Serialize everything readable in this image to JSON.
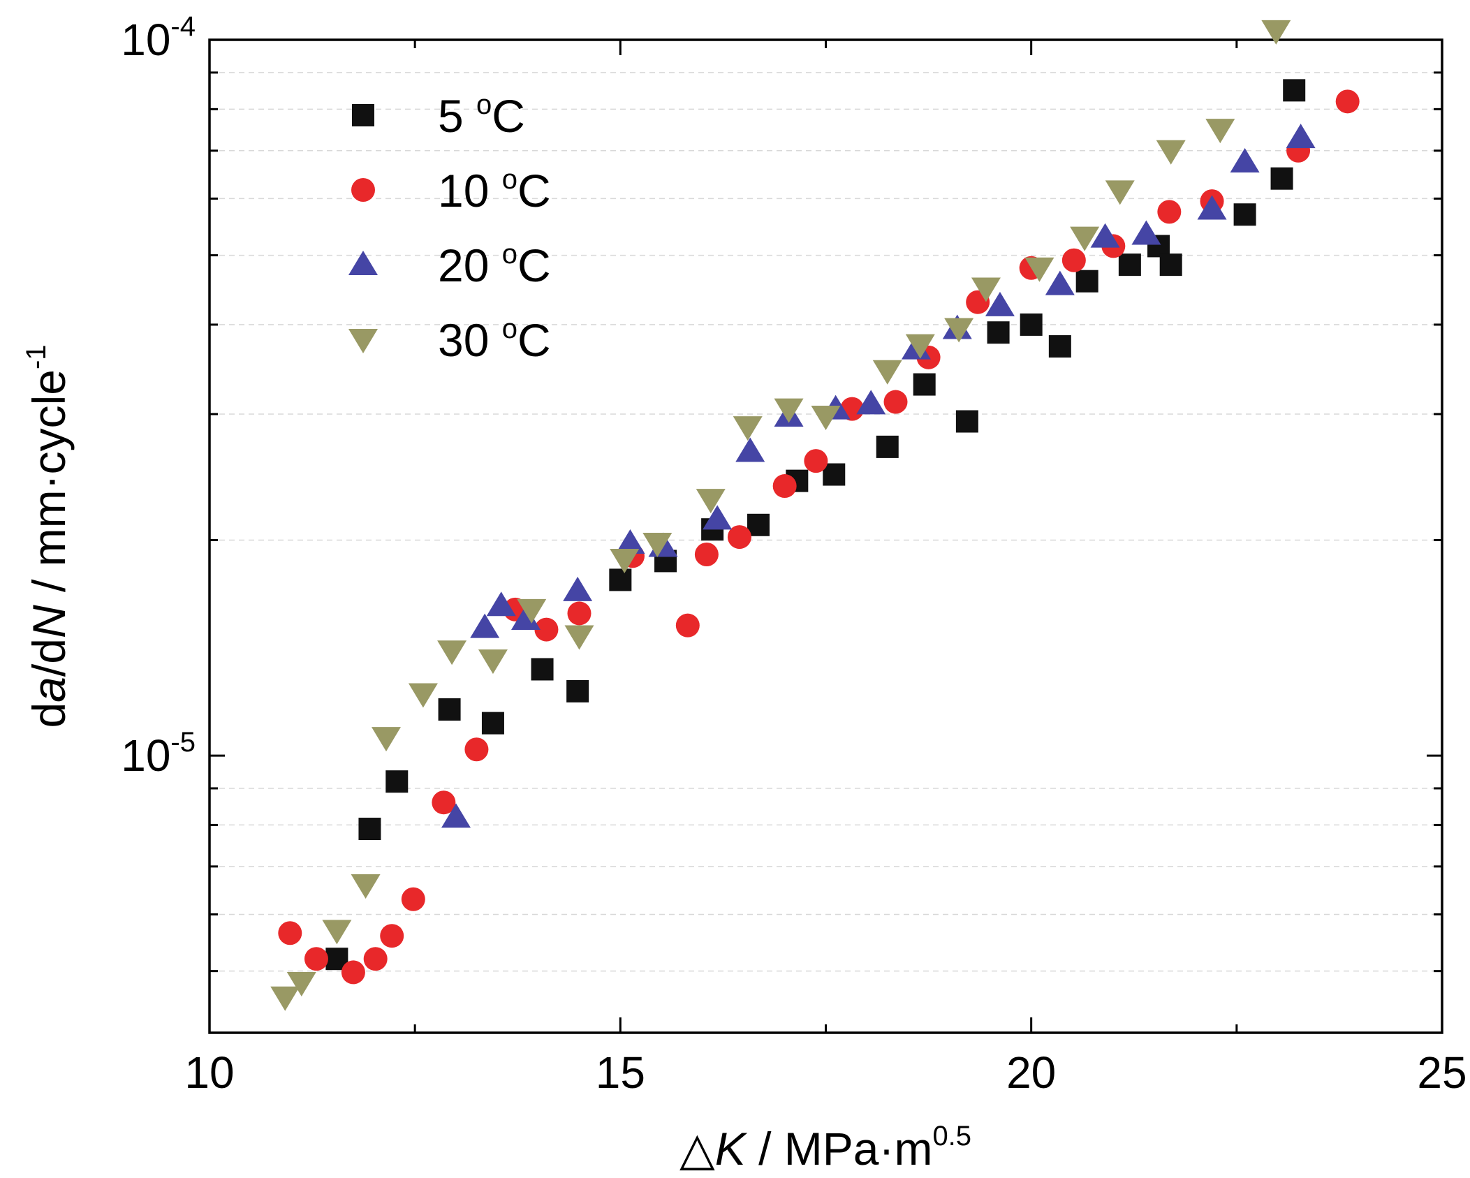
{
  "chart_data": {
    "type": "scatter",
    "xlabel": {
      "prefix": "△",
      "var": "K",
      "unit": " / MPa·m",
      "sup": "0.5"
    },
    "ylabel": {
      "d1": "d",
      "var1": "a",
      "mid": "/d",
      "var2": "N",
      "unit": " / mm·cycle",
      "sup": "-1"
    },
    "xlim": [
      10,
      25
    ],
    "ylim": [
      4.1e-06,
      0.0001
    ],
    "yscale": "log",
    "grid": "minor horizontal dashed",
    "legend_placement": "top-left",
    "x_ticks": [
      10,
      15,
      20,
      25
    ],
    "y_ticks": [
      {
        "value": 1e-05,
        "base": "10",
        "exp": "-5"
      },
      {
        "value": 0.0001,
        "base": "10",
        "exp": "-4"
      }
    ],
    "series": [
      {
        "name": "5 °C",
        "legend_main": "5 ",
        "legend_sup": "o",
        "legend_end": "C",
        "marker": "square",
        "color": "#111111",
        "points": [
          [
            11.55,
            5.2e-06
          ],
          [
            11.95,
            7.9e-06
          ],
          [
            12.28,
            9.2e-06
          ],
          [
            12.92,
            1.16e-05
          ],
          [
            13.45,
            1.11e-05
          ],
          [
            14.05,
            1.32e-05
          ],
          [
            14.48,
            1.23e-05
          ],
          [
            15.0,
            1.76e-05
          ],
          [
            15.55,
            1.87e-05
          ],
          [
            16.12,
            2.07e-05
          ],
          [
            16.68,
            2.1e-05
          ],
          [
            17.15,
            2.42e-05
          ],
          [
            17.6,
            2.47e-05
          ],
          [
            18.25,
            2.7e-05
          ],
          [
            18.7,
            3.3e-05
          ],
          [
            19.22,
            2.93e-05
          ],
          [
            19.6,
            3.9e-05
          ],
          [
            20.0,
            4e-05
          ],
          [
            20.35,
            3.73e-05
          ],
          [
            20.68,
            4.6e-05
          ],
          [
            21.2,
            4.85e-05
          ],
          [
            21.55,
            5.15e-05
          ],
          [
            21.7,
            4.85e-05
          ],
          [
            22.6,
            5.7e-05
          ],
          [
            23.05,
            6.4e-05
          ],
          [
            23.2,
            8.5e-05
          ]
        ]
      },
      {
        "name": "10 °C",
        "legend_main": "10 ",
        "legend_sup": "o",
        "legend_end": "C",
        "marker": "circle",
        "color": "#e8282a",
        "points": [
          [
            10.98,
            5.65e-06
          ],
          [
            11.3,
            5.2e-06
          ],
          [
            11.75,
            4.98e-06
          ],
          [
            12.02,
            5.2e-06
          ],
          [
            12.22,
            5.6e-06
          ],
          [
            12.48,
            6.3e-06
          ],
          [
            12.85,
            8.6e-06
          ],
          [
            13.25,
            1.02e-05
          ],
          [
            13.72,
            1.6e-05
          ],
          [
            14.1,
            1.5e-05
          ],
          [
            14.5,
            1.58e-05
          ],
          [
            15.15,
            1.9e-05
          ],
          [
            15.82,
            1.52e-05
          ],
          [
            16.05,
            1.91e-05
          ],
          [
            16.45,
            2.02e-05
          ],
          [
            17.0,
            2.38e-05
          ],
          [
            17.38,
            2.58e-05
          ],
          [
            17.82,
            3.05e-05
          ],
          [
            18.35,
            3.12e-05
          ],
          [
            18.75,
            3.6e-05
          ],
          [
            19.35,
            4.3e-05
          ],
          [
            20.0,
            4.8e-05
          ],
          [
            20.52,
            4.92e-05
          ],
          [
            21.0,
            5.15e-05
          ],
          [
            21.68,
            5.75e-05
          ],
          [
            22.2,
            5.95e-05
          ],
          [
            23.25,
            7e-05
          ],
          [
            23.85,
            8.2e-05
          ]
        ]
      },
      {
        "name": "20 °C",
        "legend_main": "20 ",
        "legend_sup": "o",
        "legend_end": "C",
        "marker": "triangle-up",
        "color": "#4545a5",
        "points": [
          [
            13.0,
            8.2e-06
          ],
          [
            13.35,
            1.51e-05
          ],
          [
            13.55,
            1.62e-05
          ],
          [
            13.85,
            1.55e-05
          ],
          [
            14.48,
            1.7e-05
          ],
          [
            15.12,
            1.98e-05
          ],
          [
            15.52,
            1.96e-05
          ],
          [
            16.18,
            2.14e-05
          ],
          [
            16.58,
            2.66e-05
          ],
          [
            17.05,
            2.98e-05
          ],
          [
            17.62,
            3.05e-05
          ],
          [
            18.05,
            3.1e-05
          ],
          [
            18.6,
            3.7e-05
          ],
          [
            19.1,
            3.95e-05
          ],
          [
            19.62,
            4.25e-05
          ],
          [
            20.35,
            4.55e-05
          ],
          [
            20.9,
            5.3e-05
          ],
          [
            21.4,
            5.35e-05
          ],
          [
            22.2,
            5.8e-05
          ],
          [
            22.6,
            6.75e-05
          ],
          [
            23.28,
            7.3e-05
          ]
        ]
      },
      {
        "name": "30 °C",
        "legend_main": "30 ",
        "legend_sup": "o",
        "legend_end": "C",
        "marker": "triangle-down",
        "color": "#999964",
        "points": [
          [
            10.92,
            4.6e-06
          ],
          [
            11.12,
            4.82e-06
          ],
          [
            11.55,
            5.7e-06
          ],
          [
            11.9,
            6.6e-06
          ],
          [
            12.15,
            1.06e-05
          ],
          [
            12.6,
            1.22e-05
          ],
          [
            12.95,
            1.4e-05
          ],
          [
            13.45,
            1.36e-05
          ],
          [
            13.92,
            1.6e-05
          ],
          [
            14.5,
            1.47e-05
          ],
          [
            15.05,
            1.88e-05
          ],
          [
            15.45,
            1.98e-05
          ],
          [
            16.1,
            2.28e-05
          ],
          [
            16.55,
            2.88e-05
          ],
          [
            17.05,
            3.05e-05
          ],
          [
            17.5,
            2.98e-05
          ],
          [
            18.25,
            3.45e-05
          ],
          [
            18.65,
            3.75e-05
          ],
          [
            19.12,
            3.95e-05
          ],
          [
            19.45,
            4.5e-05
          ],
          [
            20.1,
            4.8e-05
          ],
          [
            20.65,
            5.3e-05
          ],
          [
            21.08,
            6.15e-05
          ],
          [
            21.7,
            7e-05
          ],
          [
            22.3,
            7.5e-05
          ],
          [
            22.98,
            0.000103
          ]
        ]
      }
    ]
  }
}
